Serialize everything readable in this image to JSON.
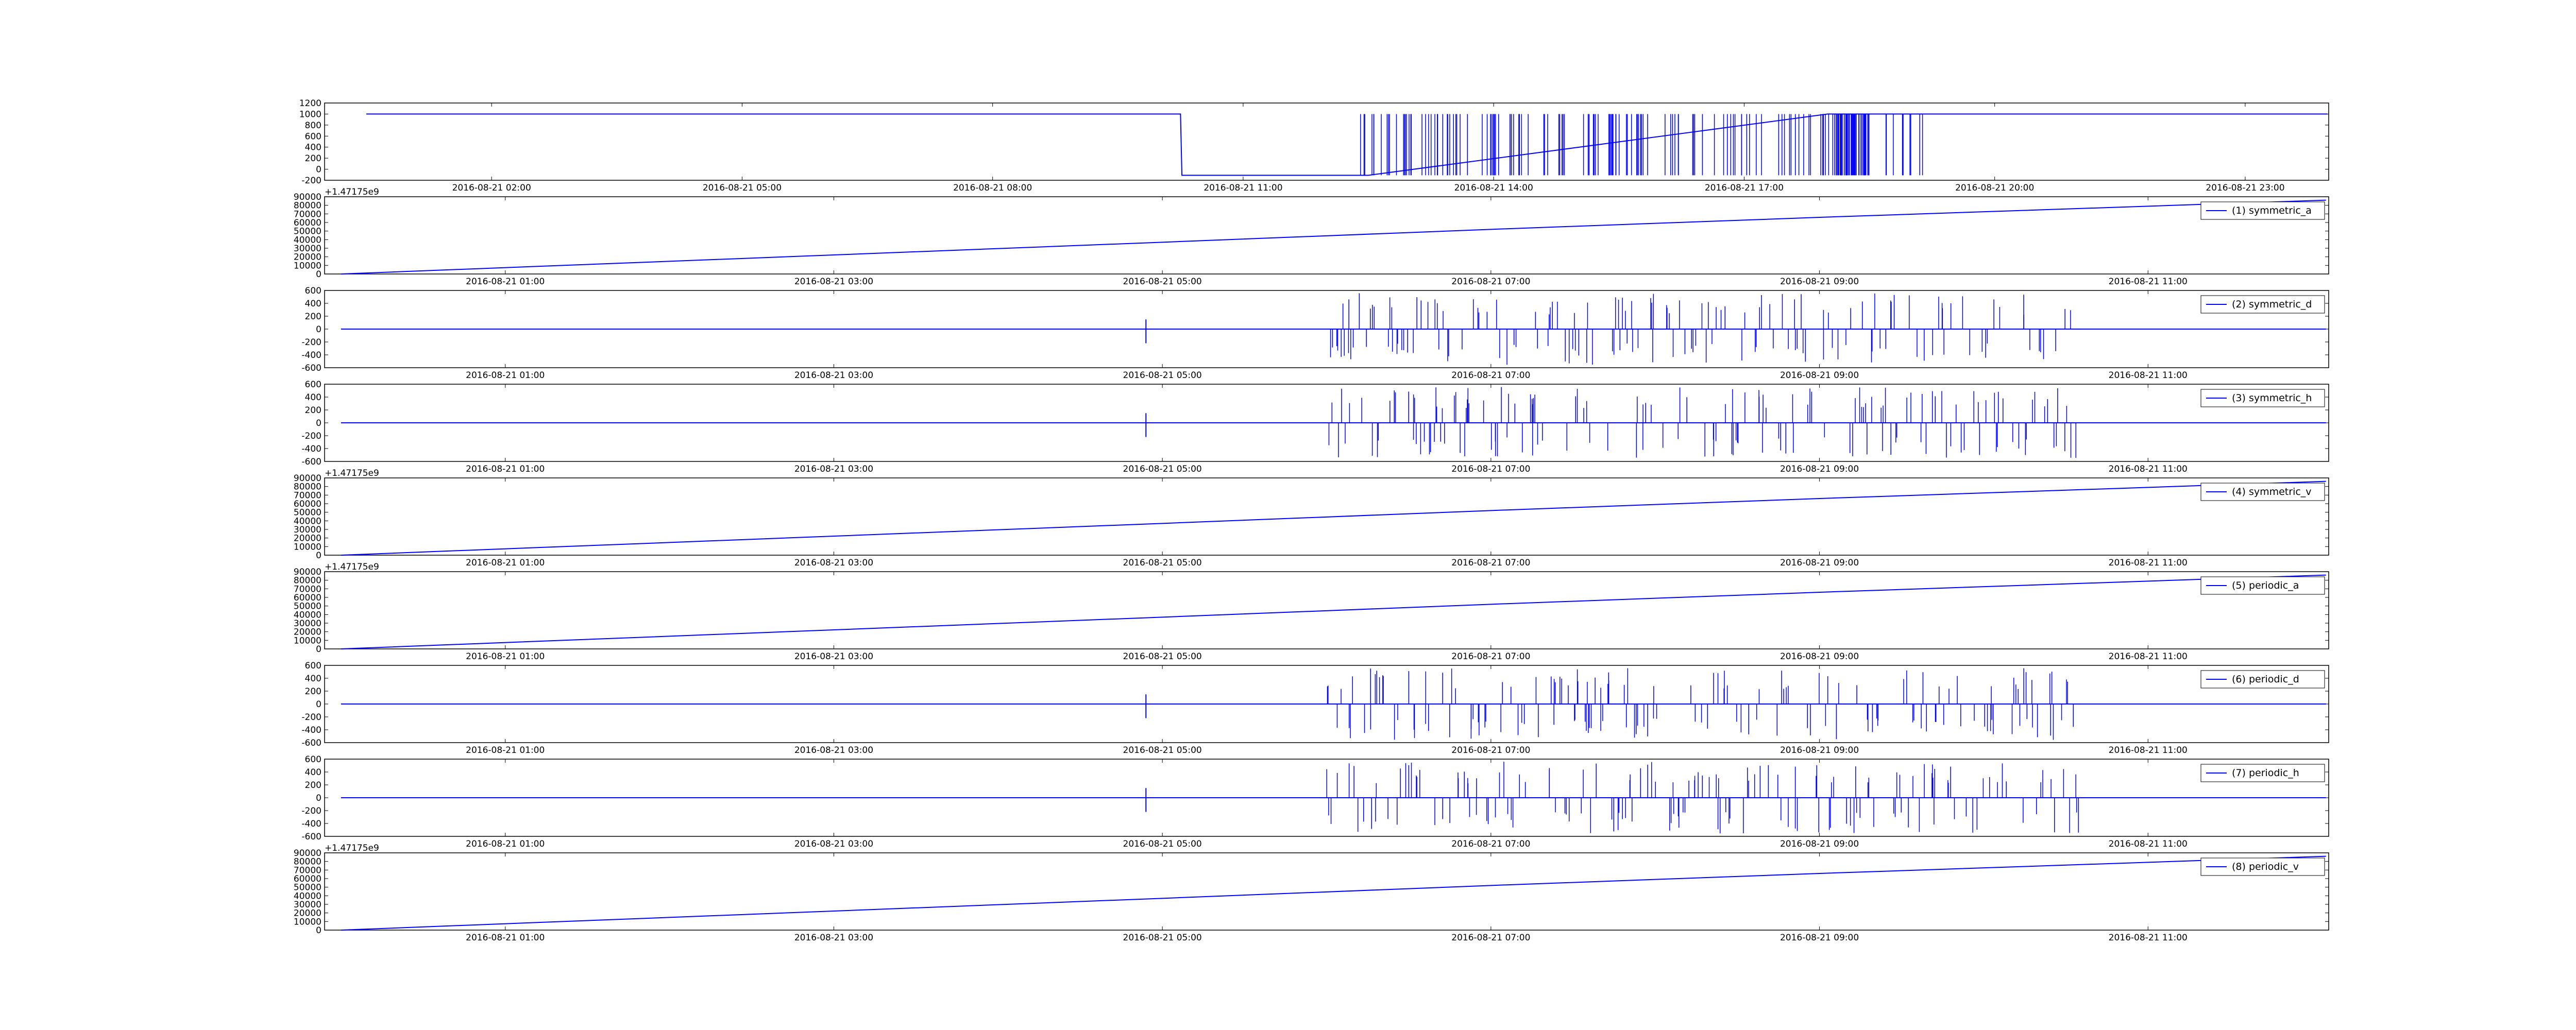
{
  "figure": {
    "background": "#ffffff",
    "line_color": "#0000ff"
  },
  "chart_data": [
    {
      "type": "line",
      "offset_text": "",
      "ylim": [
        -200,
        1200
      ],
      "yticks": [
        "-200",
        "0",
        "200",
        "400",
        "600",
        "800",
        "1000",
        "1200"
      ],
      "xticks": [
        "2016-08-21 02:00",
        "2016-08-21 05:00",
        "2016-08-21 08:00",
        "2016-08-21 11:00",
        "2016-08-21 14:00",
        "2016-08-21 17:00",
        "2016-08-21 20:00",
        "2016-08-21 23:00"
      ],
      "legend": null,
      "series": [
        {
          "x": [
            "00:30",
            "10:15",
            "10:16",
            "12:30",
            "18:00",
            "18:30",
            "23:59"
          ],
          "y": [
            1000,
            1000,
            -110,
            -110,
            1000,
            1000,
            1000
          ]
        }
      ]
    },
    {
      "type": "line",
      "offset_text": "+1.47175e9",
      "ylim": [
        0,
        90000
      ],
      "yticks": [
        "0",
        "10000",
        "20000",
        "30000",
        "40000",
        "50000",
        "60000",
        "70000",
        "80000",
        "90000"
      ],
      "xticks": [
        "2016-08-21 01:00",
        "2016-08-21 03:00",
        "2016-08-21 05:00",
        "2016-08-21 07:00",
        "2016-08-21 09:00",
        "2016-08-21 11:00"
      ],
      "legend": "(1) symmetric_a",
      "series": [
        {
          "x": [
            "00:00",
            "05:00",
            "07:00",
            "09:00",
            "12:05"
          ],
          "y": [
            0,
            37000,
            52000,
            66000,
            86000
          ]
        }
      ]
    },
    {
      "type": "line",
      "offset_text": "",
      "ylim": [
        -600,
        600
      ],
      "yticks": [
        "-600",
        "-400",
        "-200",
        "0",
        "200",
        "400",
        "600"
      ],
      "xticks": [
        "2016-08-21 01:00",
        "2016-08-21 03:00",
        "2016-08-21 05:00",
        "2016-08-21 07:00",
        "2016-08-21 09:00",
        "2016-08-21 11:00"
      ],
      "legend": "(2) symmetric_d",
      "series": [
        {
          "x": [
            "00:00",
            "12:05"
          ],
          "y": [
            0,
            0
          ]
        }
      ]
    },
    {
      "type": "line",
      "offset_text": "",
      "ylim": [
        -600,
        600
      ],
      "yticks": [
        "-600",
        "-400",
        "-200",
        "0",
        "200",
        "400",
        "600"
      ],
      "xticks": [
        "2016-08-21 01:00",
        "2016-08-21 03:00",
        "2016-08-21 05:00",
        "2016-08-21 07:00",
        "2016-08-21 09:00",
        "2016-08-21 11:00"
      ],
      "legend": "(3) symmetric_h",
      "series": [
        {
          "x": [
            "00:00",
            "12:05"
          ],
          "y": [
            0,
            0
          ]
        }
      ]
    },
    {
      "type": "line",
      "offset_text": "+1.47175e9",
      "ylim": [
        0,
        90000
      ],
      "yticks": [
        "0",
        "10000",
        "20000",
        "30000",
        "40000",
        "50000",
        "60000",
        "70000",
        "80000",
        "90000"
      ],
      "xticks": [
        "2016-08-21 01:00",
        "2016-08-21 03:00",
        "2016-08-21 05:00",
        "2016-08-21 07:00",
        "2016-08-21 09:00",
        "2016-08-21 11:00"
      ],
      "legend": "(4) symmetric_v",
      "series": [
        {
          "x": [
            "00:00",
            "05:00",
            "07:00",
            "09:00",
            "12:05"
          ],
          "y": [
            0,
            37000,
            52000,
            66000,
            86000
          ]
        }
      ]
    },
    {
      "type": "line",
      "offset_text": "+1.47175e9",
      "ylim": [
        0,
        90000
      ],
      "yticks": [
        "0",
        "10000",
        "20000",
        "30000",
        "40000",
        "50000",
        "60000",
        "70000",
        "80000",
        "90000"
      ],
      "xticks": [
        "2016-08-21 01:00",
        "2016-08-21 03:00",
        "2016-08-21 05:00",
        "2016-08-21 07:00",
        "2016-08-21 09:00",
        "2016-08-21 11:00"
      ],
      "legend": "(5) periodic_a",
      "series": [
        {
          "x": [
            "00:00",
            "05:00",
            "07:00",
            "09:00",
            "12:05"
          ],
          "y": [
            0,
            37000,
            52000,
            66000,
            86000
          ]
        }
      ]
    },
    {
      "type": "line",
      "offset_text": "",
      "ylim": [
        -600,
        600
      ],
      "yticks": [
        "-600",
        "-400",
        "-200",
        "0",
        "200",
        "400",
        "600"
      ],
      "xticks": [
        "2016-08-21 01:00",
        "2016-08-21 03:00",
        "2016-08-21 05:00",
        "2016-08-21 07:00",
        "2016-08-21 09:00",
        "2016-08-21 11:00"
      ],
      "legend": "(6) periodic_d",
      "series": [
        {
          "x": [
            "00:00",
            "12:05"
          ],
          "y": [
            0,
            0
          ]
        }
      ]
    },
    {
      "type": "line",
      "offset_text": "",
      "ylim": [
        -600,
        600
      ],
      "yticks": [
        "-600",
        "-400",
        "-200",
        "0",
        "200",
        "400",
        "600"
      ],
      "xticks": [
        "2016-08-21 01:00",
        "2016-08-21 03:00",
        "2016-08-21 05:00",
        "2016-08-21 07:00",
        "2016-08-21 09:00",
        "2016-08-21 11:00"
      ],
      "legend": "(7) periodic_h",
      "series": [
        {
          "x": [
            "00:00",
            "12:05"
          ],
          "y": [
            0,
            0
          ]
        }
      ]
    },
    {
      "type": "line",
      "offset_text": "+1.47175e9",
      "ylim": [
        0,
        90000
      ],
      "yticks": [
        "0",
        "10000",
        "20000",
        "30000",
        "40000",
        "50000",
        "60000",
        "70000",
        "80000",
        "90000"
      ],
      "xticks": [
        "2016-08-21 01:00",
        "2016-08-21 03:00",
        "2016-08-21 05:00",
        "2016-08-21 07:00",
        "2016-08-21 09:00",
        "2016-08-21 11:00"
      ],
      "legend": "(8) periodic_v",
      "series": [
        {
          "x": [
            "00:00",
            "05:00",
            "07:00",
            "09:00",
            "12:05"
          ],
          "y": [
            0,
            37000,
            52000,
            66000,
            86000
          ]
        }
      ]
    }
  ]
}
